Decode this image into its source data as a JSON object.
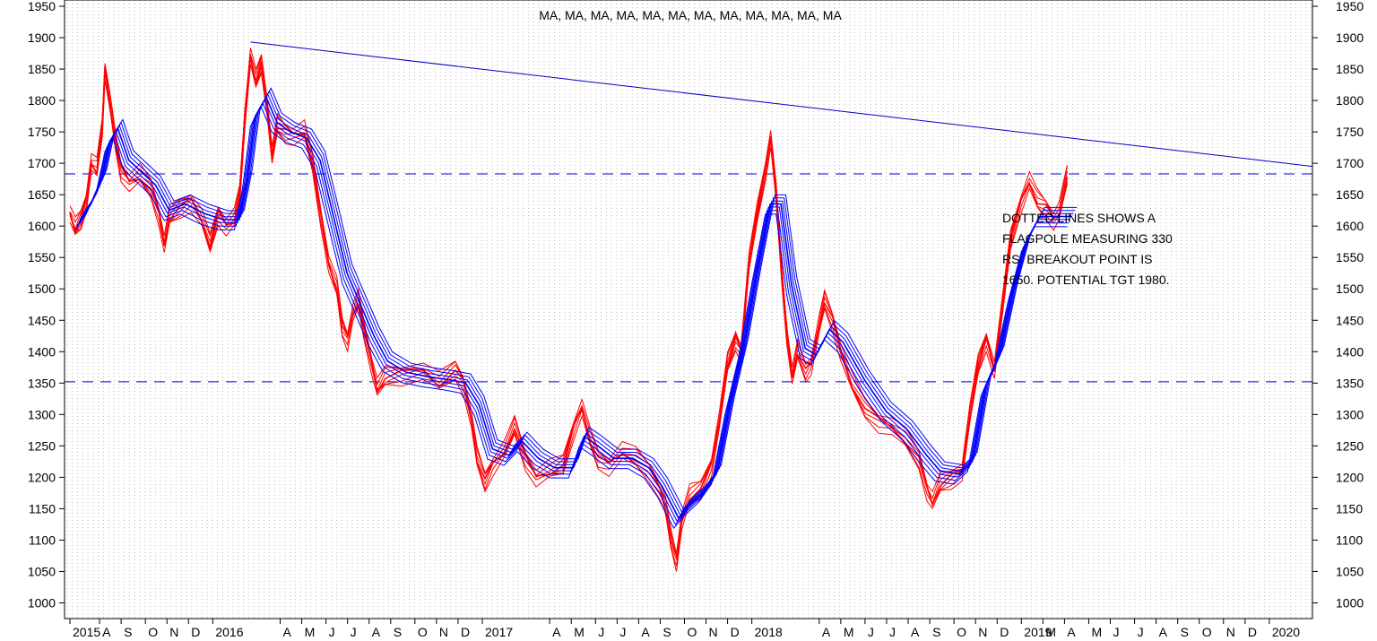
{
  "chart_data": {
    "type": "line",
    "title": "MA, MA, MA, MA, MA, MA, MA, MA, MA, MA, MA, MA",
    "ylim": [
      975,
      1960
    ],
    "y_ticks": [
      1000,
      1050,
      1100,
      1150,
      1200,
      1250,
      1300,
      1350,
      1400,
      1450,
      1500,
      1550,
      1600,
      1650,
      1700,
      1750,
      1800,
      1850,
      1900,
      1950
    ],
    "x_range": [
      2015.45,
      2020.08
    ],
    "x_labels": [
      {
        "t": 2015.47,
        "label": "2015"
      },
      {
        "t": 2015.58,
        "label": "A"
      },
      {
        "t": 2015.66,
        "label": "S"
      },
      {
        "t": 2015.75,
        "label": "O"
      },
      {
        "t": 2015.83,
        "label": "N"
      },
      {
        "t": 2015.91,
        "label": "D"
      },
      {
        "t": 2016.0,
        "label": "2016"
      },
      {
        "t": 2016.25,
        "label": "A"
      },
      {
        "t": 2016.33,
        "label": "M"
      },
      {
        "t": 2016.42,
        "label": "J"
      },
      {
        "t": 2016.5,
        "label": "J"
      },
      {
        "t": 2016.58,
        "label": "A"
      },
      {
        "t": 2016.66,
        "label": "S"
      },
      {
        "t": 2016.75,
        "label": "O"
      },
      {
        "t": 2016.83,
        "label": "N"
      },
      {
        "t": 2016.91,
        "label": "D"
      },
      {
        "t": 2017.0,
        "label": "2017"
      },
      {
        "t": 2017.25,
        "label": "A"
      },
      {
        "t": 2017.33,
        "label": "M"
      },
      {
        "t": 2017.42,
        "label": "J"
      },
      {
        "t": 2017.5,
        "label": "J"
      },
      {
        "t": 2017.58,
        "label": "A"
      },
      {
        "t": 2017.66,
        "label": "S"
      },
      {
        "t": 2017.75,
        "label": "O"
      },
      {
        "t": 2017.83,
        "label": "N"
      },
      {
        "t": 2017.91,
        "label": "D"
      },
      {
        "t": 2018.0,
        "label": "2018"
      },
      {
        "t": 2018.25,
        "label": "A"
      },
      {
        "t": 2018.33,
        "label": "M"
      },
      {
        "t": 2018.42,
        "label": "J"
      },
      {
        "t": 2018.5,
        "label": "J"
      },
      {
        "t": 2018.58,
        "label": "A"
      },
      {
        "t": 2018.66,
        "label": "S"
      },
      {
        "t": 2018.75,
        "label": "O"
      },
      {
        "t": 2018.83,
        "label": "N"
      },
      {
        "t": 2018.91,
        "label": "D"
      },
      {
        "t": 2019.0,
        "label": "2019"
      },
      {
        "t": 2019.08,
        "label": "M"
      },
      {
        "t": 2019.16,
        "label": "A"
      },
      {
        "t": 2019.25,
        "label": "M"
      },
      {
        "t": 2019.33,
        "label": "J"
      },
      {
        "t": 2019.42,
        "label": "J"
      },
      {
        "t": 2019.5,
        "label": "A"
      },
      {
        "t": 2019.58,
        "label": "S"
      },
      {
        "t": 2019.66,
        "label": "O"
      },
      {
        "t": 2019.75,
        "label": "N"
      },
      {
        "t": 2019.83,
        "label": "D"
      },
      {
        "t": 2019.92,
        "label": "2020"
      }
    ],
    "series": [
      {
        "color": "#ff0000",
        "points": [
          [
            2015.47,
            1620
          ],
          [
            2015.49,
            1595
          ],
          [
            2015.51,
            1610
          ],
          [
            2015.53,
            1640
          ],
          [
            2015.55,
            1700
          ],
          [
            2015.57,
            1690
          ],
          [
            2015.59,
            1760
          ],
          [
            2015.6,
            1850
          ],
          [
            2015.62,
            1790
          ],
          [
            2015.64,
            1730
          ],
          [
            2015.66,
            1690
          ],
          [
            2015.69,
            1670
          ],
          [
            2015.73,
            1680
          ],
          [
            2015.77,
            1660
          ],
          [
            2015.8,
            1620
          ],
          [
            2015.82,
            1570
          ],
          [
            2015.84,
            1615
          ],
          [
            2015.88,
            1630
          ],
          [
            2015.92,
            1640
          ],
          [
            2015.96,
            1610
          ],
          [
            2015.99,
            1570
          ],
          [
            2016.02,
            1620
          ],
          [
            2016.05,
            1600
          ],
          [
            2016.08,
            1610
          ],
          [
            2016.1,
            1650
          ],
          [
            2016.12,
            1780
          ],
          [
            2016.14,
            1870
          ],
          [
            2016.16,
            1830
          ],
          [
            2016.18,
            1860
          ],
          [
            2016.2,
            1800
          ],
          [
            2016.22,
            1710
          ],
          [
            2016.24,
            1760
          ],
          [
            2016.27,
            1750
          ],
          [
            2016.3,
            1745
          ],
          [
            2016.34,
            1750
          ],
          [
            2016.37,
            1700
          ],
          [
            2016.4,
            1620
          ],
          [
            2016.43,
            1540
          ],
          [
            2016.46,
            1500
          ],
          [
            2016.48,
            1440
          ],
          [
            2016.5,
            1420
          ],
          [
            2016.52,
            1460
          ],
          [
            2016.54,
            1480
          ],
          [
            2016.56,
            1440
          ],
          [
            2016.59,
            1380
          ],
          [
            2016.61,
            1340
          ],
          [
            2016.64,
            1360
          ],
          [
            2016.7,
            1365
          ],
          [
            2016.78,
            1370
          ],
          [
            2016.84,
            1350
          ],
          [
            2016.9,
            1370
          ],
          [
            2016.93,
            1350
          ],
          [
            2016.96,
            1290
          ],
          [
            2016.98,
            1230
          ],
          [
            2017.01,
            1195
          ],
          [
            2017.04,
            1220
          ],
          [
            2017.08,
            1240
          ],
          [
            2017.12,
            1280
          ],
          [
            2017.16,
            1230
          ],
          [
            2017.2,
            1200
          ],
          [
            2017.25,
            1210
          ],
          [
            2017.3,
            1220
          ],
          [
            2017.34,
            1280
          ],
          [
            2017.37,
            1310
          ],
          [
            2017.4,
            1260
          ],
          [
            2017.43,
            1230
          ],
          [
            2017.47,
            1220
          ],
          [
            2017.52,
            1240
          ],
          [
            2017.57,
            1230
          ],
          [
            2017.62,
            1210
          ],
          [
            2017.66,
            1180
          ],
          [
            2017.68,
            1150
          ],
          [
            2017.7,
            1100
          ],
          [
            2017.72,
            1070
          ],
          [
            2017.74,
            1130
          ],
          [
            2017.77,
            1170
          ],
          [
            2017.81,
            1180
          ],
          [
            2017.85,
            1220
          ],
          [
            2017.88,
            1290
          ],
          [
            2017.91,
            1380
          ],
          [
            2017.94,
            1420
          ],
          [
            2017.96,
            1400
          ],
          [
            2017.99,
            1540
          ],
          [
            2018.02,
            1620
          ],
          [
            2018.05,
            1690
          ],
          [
            2018.07,
            1740
          ],
          [
            2018.09,
            1650
          ],
          [
            2018.11,
            1530
          ],
          [
            2018.13,
            1430
          ],
          [
            2018.15,
            1360
          ],
          [
            2018.17,
            1400
          ],
          [
            2018.2,
            1370
          ],
          [
            2018.22,
            1380
          ],
          [
            2018.25,
            1440
          ],
          [
            2018.27,
            1480
          ],
          [
            2018.3,
            1450
          ],
          [
            2018.33,
            1400
          ],
          [
            2018.37,
            1350
          ],
          [
            2018.42,
            1310
          ],
          [
            2018.47,
            1290
          ],
          [
            2018.52,
            1280
          ],
          [
            2018.57,
            1260
          ],
          [
            2018.62,
            1230
          ],
          [
            2018.65,
            1180
          ],
          [
            2018.67,
            1160
          ],
          [
            2018.7,
            1190
          ],
          [
            2018.74,
            1200
          ],
          [
            2018.78,
            1210
          ],
          [
            2018.81,
            1300
          ],
          [
            2018.84,
            1380
          ],
          [
            2018.87,
            1420
          ],
          [
            2018.9,
            1370
          ],
          [
            2018.93,
            1470
          ],
          [
            2018.96,
            1580
          ],
          [
            2019.0,
            1640
          ],
          [
            2019.03,
            1670
          ],
          [
            2019.06,
            1640
          ],
          [
            2019.09,
            1630
          ],
          [
            2019.12,
            1610
          ],
          [
            2019.14,
            1620
          ],
          [
            2019.17,
            1680
          ]
        ]
      },
      {
        "color": "#0000ff",
        "points": [
          [
            2015.49,
            1615
          ],
          [
            2015.53,
            1640
          ],
          [
            2015.57,
            1680
          ],
          [
            2015.6,
            1740
          ],
          [
            2015.63,
            1760
          ],
          [
            2015.67,
            1710
          ],
          [
            2015.72,
            1690
          ],
          [
            2015.77,
            1670
          ],
          [
            2015.82,
            1630
          ],
          [
            2015.88,
            1640
          ],
          [
            2015.95,
            1625
          ],
          [
            2016.02,
            1615
          ],
          [
            2016.08,
            1615
          ],
          [
            2016.11,
            1680
          ],
          [
            2016.14,
            1780
          ],
          [
            2016.18,
            1810
          ],
          [
            2016.22,
            1770
          ],
          [
            2016.27,
            1755
          ],
          [
            2016.33,
            1745
          ],
          [
            2016.38,
            1710
          ],
          [
            2016.43,
            1620
          ],
          [
            2016.48,
            1530
          ],
          [
            2016.53,
            1480
          ],
          [
            2016.58,
            1430
          ],
          [
            2016.63,
            1390
          ],
          [
            2016.7,
            1372
          ],
          [
            2016.78,
            1365
          ],
          [
            2016.86,
            1360
          ],
          [
            2016.92,
            1355
          ],
          [
            2016.97,
            1320
          ],
          [
            2017.02,
            1250
          ],
          [
            2017.08,
            1240
          ],
          [
            2017.13,
            1262
          ],
          [
            2017.19,
            1235
          ],
          [
            2017.25,
            1220
          ],
          [
            2017.32,
            1220
          ],
          [
            2017.36,
            1270
          ],
          [
            2017.41,
            1255
          ],
          [
            2017.47,
            1235
          ],
          [
            2017.54,
            1235
          ],
          [
            2017.6,
            1220
          ],
          [
            2017.65,
            1190
          ],
          [
            2017.71,
            1140
          ],
          [
            2017.75,
            1160
          ],
          [
            2017.8,
            1180
          ],
          [
            2017.85,
            1210
          ],
          [
            2017.9,
            1320
          ],
          [
            2017.95,
            1410
          ],
          [
            2018.0,
            1530
          ],
          [
            2018.05,
            1640
          ],
          [
            2018.09,
            1640
          ],
          [
            2018.13,
            1510
          ],
          [
            2018.18,
            1410
          ],
          [
            2018.22,
            1400
          ],
          [
            2018.27,
            1440
          ],
          [
            2018.32,
            1420
          ],
          [
            2018.4,
            1360
          ],
          [
            2018.48,
            1310
          ],
          [
            2018.56,
            1280
          ],
          [
            2018.63,
            1240
          ],
          [
            2018.68,
            1215
          ],
          [
            2018.75,
            1210
          ],
          [
            2018.8,
            1230
          ],
          [
            2018.85,
            1350
          ],
          [
            2018.9,
            1400
          ],
          [
            2018.95,
            1500
          ],
          [
            2019.0,
            1580
          ],
          [
            2019.05,
            1620
          ],
          [
            2019.1,
            1620
          ],
          [
            2019.17,
            1620
          ]
        ]
      }
    ],
    "reference_lines": {
      "horizontal_dashed": [
        1683,
        1352
      ],
      "trendline": {
        "from": [
          2016.14,
          1893
        ],
        "to": [
          2020.08,
          1695
        ]
      }
    },
    "annotation": [
      "DOTTED LINES SHOWS A",
      "FLAGPOLE MEASURING 330",
      "RS. BREAKOUT POINT IS",
      "1650. POTENTIAL TGT 1980."
    ],
    "grid": "vertical dotted",
    "colors": {
      "price": "#ff0000",
      "ma": "#0000ff",
      "levels": "#0000cc"
    }
  }
}
